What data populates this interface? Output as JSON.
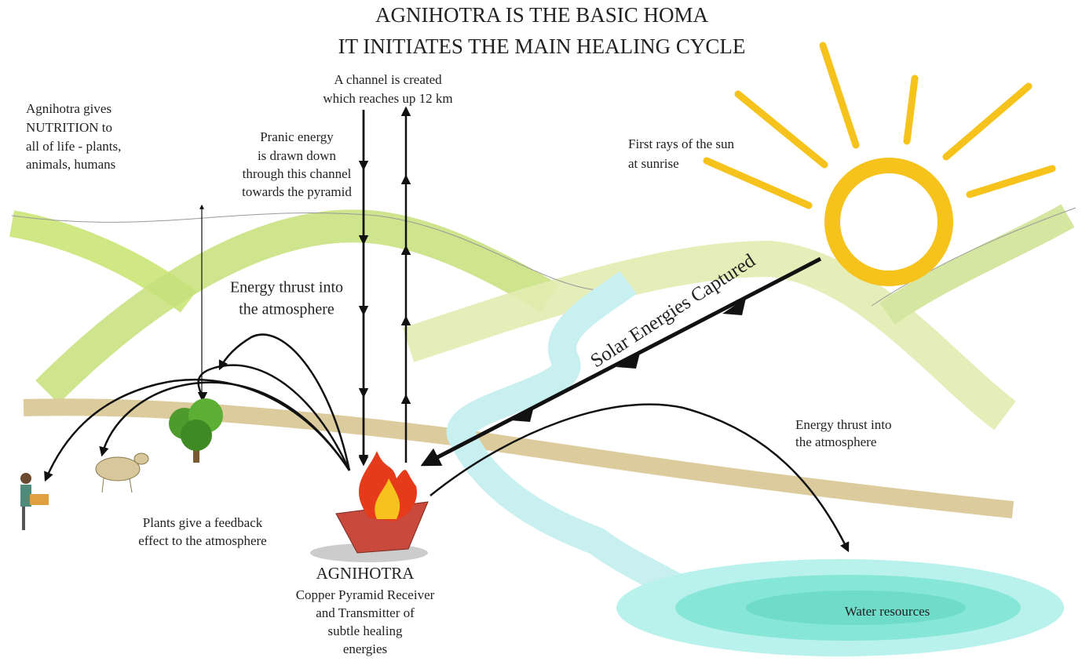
{
  "title": {
    "lines": [
      "AGNIHOTRA IS THE BASIC HOMA",
      "IT INITIATES THE MAIN HEALING CYCLE"
    ]
  },
  "labels": {
    "channel": [
      "A channel is created",
      "which reaches up 12 km"
    ],
    "nutrition": [
      "Agnihotra gives",
      "NUTRITION to",
      "all of life - plants,",
      "animals, humans"
    ],
    "pranic": [
      "Pranic energy",
      "is drawn down",
      "through this channel",
      "towards the pyramid"
    ],
    "sun": [
      "First rays of the sun",
      "at sunrise"
    ],
    "thrust_left": [
      "Energy thrust into",
      "the atmosphere"
    ],
    "solar": "Solar Energies Captured",
    "thrust_right": [
      "Energy thrust into",
      "the atmosphere"
    ],
    "plants": [
      "Plants give a feedback",
      "effect to the atmosphere"
    ],
    "agnihotra": {
      "name": "AGNIHOTRA",
      "description": [
        "Copper Pyramid Receiver",
        "and Transmitter of",
        "subtle healing",
        "energies"
      ]
    },
    "water": "Water resources"
  }
}
